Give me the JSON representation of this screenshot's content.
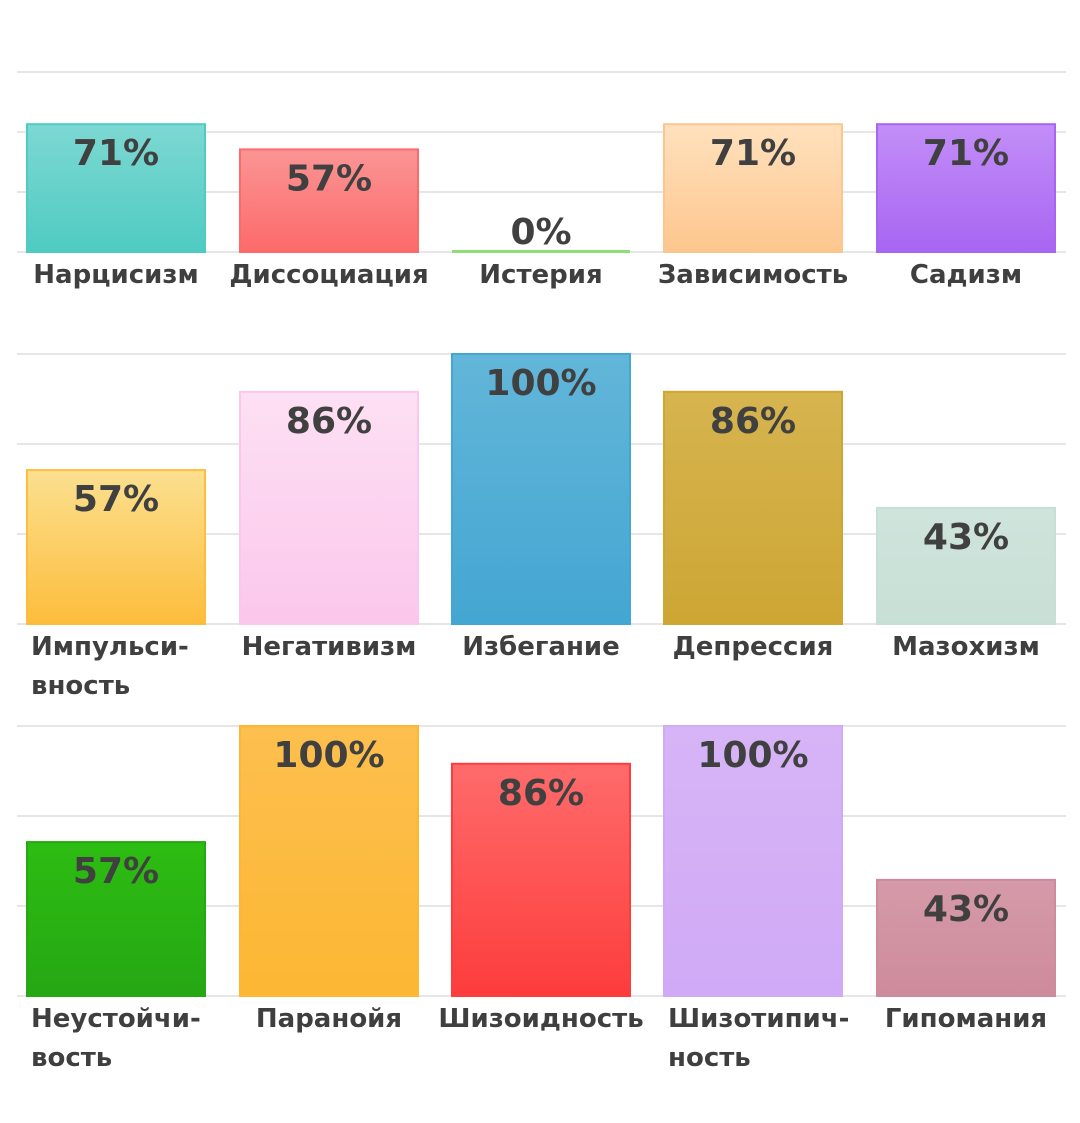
{
  "chart_data": [
    {
      "type": "bar",
      "categories": [
        [
          "Нарцисизм"
        ],
        [
          "Диссоциация"
        ],
        [
          "Истерия"
        ],
        [
          "Зависимость"
        ],
        [
          "Садизм"
        ]
      ],
      "values": [
        71,
        57,
        0,
        71,
        71
      ],
      "value_labels": [
        "71%",
        "57%",
        "0%",
        "71%",
        "71%"
      ],
      "colors": [
        [
          "#7dd8d2",
          "#4fcbc2"
        ],
        [
          "#fb9595",
          "#fc6a6a"
        ],
        [
          "#aee99b",
          "#8ddf78"
        ],
        [
          "#ffe1bd",
          "#fdc68e"
        ],
        [
          "#c28ef7",
          "#a865f2"
        ]
      ],
      "ylim": [
        0,
        100
      ],
      "grid": true
    },
    {
      "type": "bar",
      "categories": [
        [
          "Импульси-",
          "вность"
        ],
        [
          "Негативизм"
        ],
        [
          "Избегание"
        ],
        [
          "Депрессия"
        ],
        [
          "Мазохизм"
        ]
      ],
      "values": [
        57,
        86,
        100,
        86,
        43
      ],
      "value_labels": [
        "57%",
        "86%",
        "100%",
        "86%",
        "43%"
      ],
      "colors": [
        [
          "#fbe090",
          "#fdbd3c"
        ],
        [
          "#fde0f3",
          "#fbc7ec"
        ],
        [
          "#62b6d9",
          "#44a6d2"
        ],
        [
          "#d6b44f",
          "#cda634"
        ],
        [
          "#cfe4dc",
          "#c7e0d6"
        ]
      ],
      "ylim": [
        0,
        100
      ],
      "grid": true
    },
    {
      "type": "bar",
      "categories": [
        [
          "Неустойчи-",
          "вость"
        ],
        [
          "Паранойя"
        ],
        [
          "Шизоидность"
        ],
        [
          "Шизотипич-",
          "ность"
        ],
        [
          "Гипомания"
        ]
      ],
      "values": [
        57,
        100,
        86,
        100,
        43
      ],
      "value_labels": [
        "57%",
        "100%",
        "86%",
        "100%",
        "43%"
      ],
      "colors": [
        [
          "#2dbd12",
          "#26a714"
        ],
        [
          "#fdbf4e",
          "#fcb733"
        ],
        [
          "#fe6b6b",
          "#fd3c3c"
        ],
        [
          "#d7b4f6",
          "#d0aaf6"
        ],
        [
          "#d59aa9",
          "#cd8b9b"
        ]
      ],
      "ylim": [
        0,
        100
      ],
      "grid": true
    }
  ]
}
